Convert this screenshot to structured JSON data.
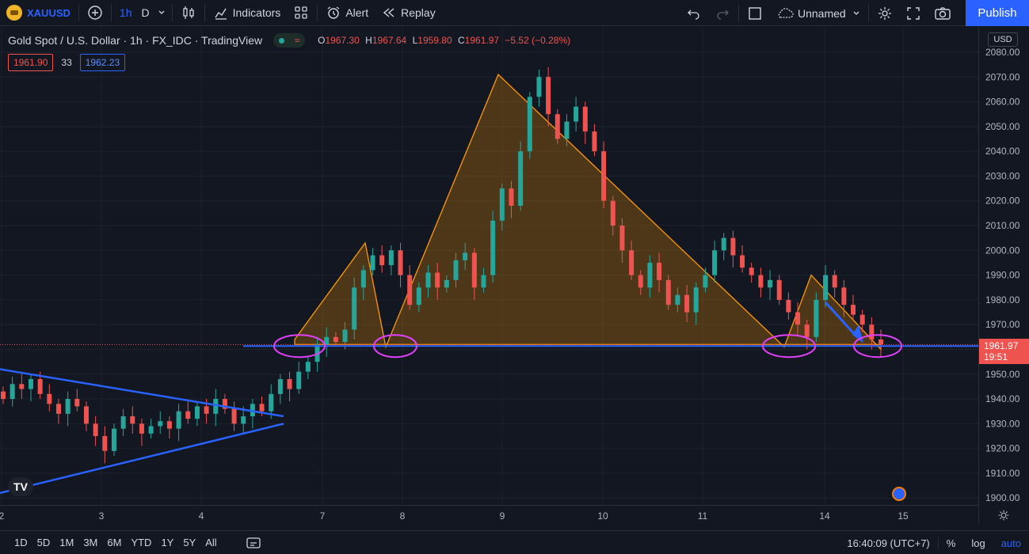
{
  "toolbar": {
    "symbol": "XAUUSD",
    "timeframe_active": "1h",
    "timeframe_alt": "D",
    "indicators_label": "Indicators",
    "alert_label": "Alert",
    "replay_label": "Replay",
    "layout_name": "Unnamed",
    "publish_label": "Publish"
  },
  "legend": {
    "title": "Gold Spot / U.S. Dollar · 1h · FX_IDC · TradingView",
    "open_label": "O",
    "open": "1967.30",
    "high_label": "H",
    "high": "1967.64",
    "low_label": "L",
    "low": "1959.80",
    "close_label": "C",
    "close": "1961.97",
    "change": "−5.52 (−0.28%)"
  },
  "quote": {
    "sell": "1961.90",
    "spread": "33",
    "buy": "1962.23"
  },
  "price_axis": {
    "currency": "USD",
    "ticks": [
      "2080.00",
      "2070.00",
      "2060.00",
      "2050.00",
      "2040.00",
      "2030.00",
      "2020.00",
      "2010.00",
      "2000.00",
      "1990.00",
      "1980.00",
      "1970.00",
      "1960.00",
      "1950.00",
      "1940.00",
      "1930.00",
      "1920.00",
      "1910.00",
      "1900.00"
    ],
    "current_price": "1961.97",
    "countdown": "19:51"
  },
  "time_axis": {
    "labels": [
      "2",
      "3",
      "4",
      "7",
      "8",
      "9",
      "10",
      "11",
      "14",
      "15"
    ]
  },
  "bottom": {
    "ranges": [
      "1D",
      "5D",
      "1M",
      "3M",
      "6M",
      "YTD",
      "1Y",
      "5Y",
      "All"
    ],
    "clock": "16:40:09 (UTC+7)",
    "percent_label": "%",
    "log_label": "log",
    "auto_label": "auto"
  },
  "colors": {
    "background": "#131722",
    "up": "#26a69a",
    "down": "#ef5350",
    "pattern_fill": "#ff9800",
    "trend_line": "#2962ff",
    "circle": "#e040fb"
  },
  "chart_data": {
    "type": "candlestick",
    "symbol": "XAUUSD",
    "interval": "1h",
    "ylim": [
      1898,
      2084
    ],
    "neckline": 1962,
    "pattern_points": [
      {
        "x": "Jul 6",
        "price": 1964
      },
      {
        "x": "Jul 7",
        "price": 2003
      },
      {
        "x": "Jul 7",
        "price": 1961
      },
      {
        "x": "Jul 9",
        "price": 2071
      },
      {
        "x": "Jul 13",
        "price": 1961
      },
      {
        "x": "Jul 13",
        "price": 1990
      },
      {
        "x": "Jul 14",
        "price": 1960
      }
    ],
    "triangle": {
      "upper_from": 1952,
      "upper_to": 1933,
      "lower_from": 1902,
      "lower_to": 1930
    },
    "closes": [
      1940,
      1946,
      1944,
      1948,
      1942,
      1938,
      1934,
      1940,
      1937,
      1930,
      1925,
      1919,
      1928,
      1933,
      1930,
      1926,
      1929,
      1931,
      1928,
      1935,
      1932,
      1937,
      1934,
      1940,
      1936,
      1930,
      1933,
      1938,
      1935,
      1942,
      1948,
      1944,
      1951,
      1955,
      1962,
      1965,
      1963,
      1968,
      1985,
      1992,
      1998,
      1994,
      2000,
      1990,
      1978,
      1985,
      1991,
      1985,
      1988,
      1996,
      1999,
      1985,
      1990,
      2012,
      2025,
      2018,
      2040,
      2062,
      2070,
      2055,
      2045,
      2052,
      2058,
      2048,
      2040,
      2020,
      2010,
      2000,
      1990,
      1985,
      1995,
      1988,
      1978,
      1982,
      1975,
      1985,
      1990,
      2000,
      2005,
      1998,
      1993,
      1990,
      1985,
      1988,
      1980,
      1975,
      1970,
      1965,
      1980,
      1990,
      1985,
      1978,
      1974,
      1970,
      1964,
      1962
    ]
  }
}
